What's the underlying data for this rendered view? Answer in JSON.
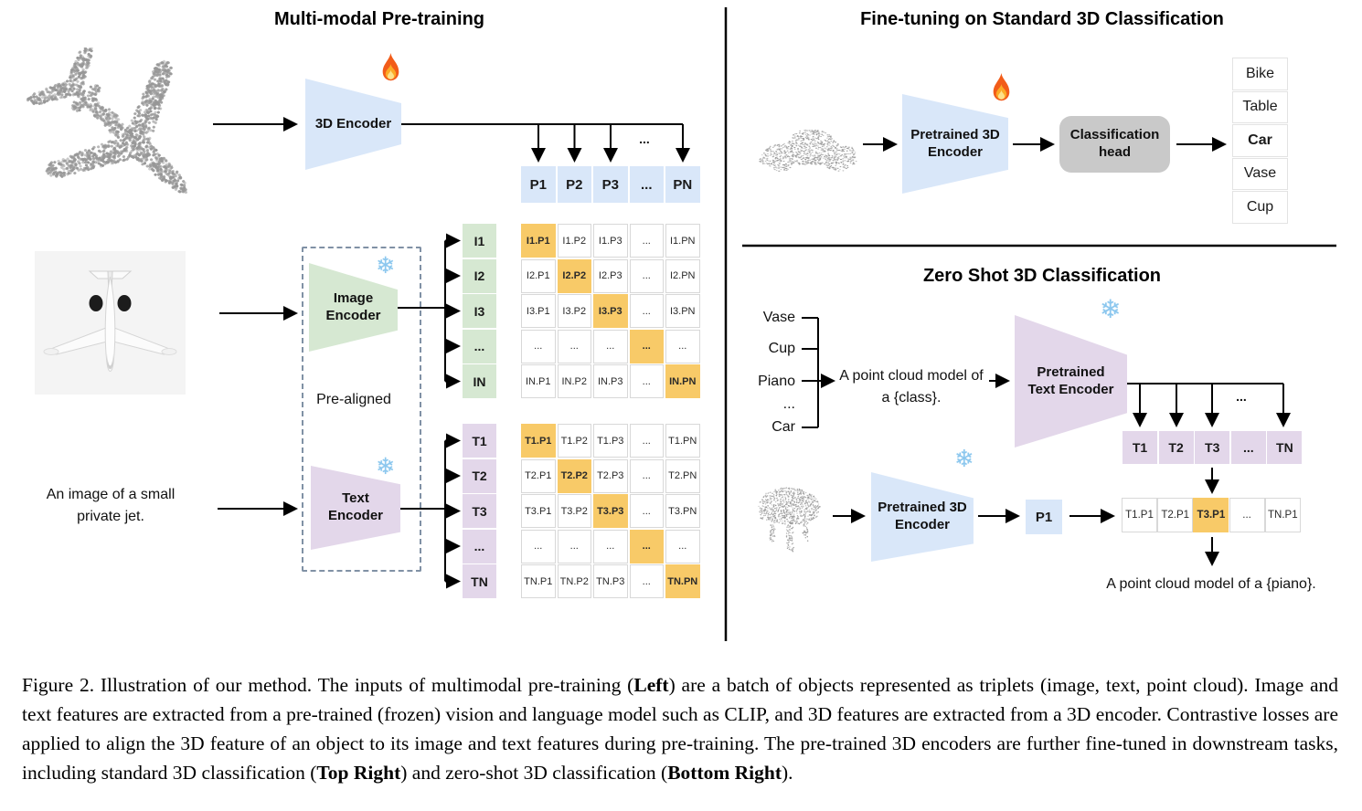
{
  "left": {
    "title": "Multi-modal Pre-training",
    "encoder3d_label": "3D Encoder",
    "image_encoder_label": "Image Encoder",
    "text_encoder_label": "Text Encoder",
    "pre_aligned": "Pre-aligned",
    "input_text": "An image of a small private jet.",
    "p_ellipsis": "...",
    "p_row": [
      "P1",
      "P2",
      "P3",
      "...",
      "PN"
    ],
    "i_labels": [
      "I1",
      "I2",
      "I3",
      "...",
      "IN"
    ],
    "t_labels": [
      "T1",
      "T2",
      "T3",
      "...",
      "TN"
    ],
    "i_matrix": [
      [
        "I1.P1",
        "I1.P2",
        "I1.P3",
        "...",
        "I1.PN"
      ],
      [
        "I2.P1",
        "I2.P2",
        "I2.P3",
        "...",
        "I2.PN"
      ],
      [
        "I3.P1",
        "I3.P2",
        "I3.P3",
        "...",
        "I3.PN"
      ],
      [
        "...",
        "...",
        "...",
        "...",
        "..."
      ],
      [
        "IN.P1",
        "IN.P2",
        "IN.P3",
        "...",
        "IN.PN"
      ]
    ],
    "t_matrix": [
      [
        "T1.P1",
        "T1.P2",
        "T1.P3",
        "...",
        "T1.PN"
      ],
      [
        "T2.P1",
        "T2.P2",
        "T2.P3",
        "...",
        "T2.PN"
      ],
      [
        "T3.P1",
        "T3.P2",
        "T3.P3",
        "...",
        "T3.PN"
      ],
      [
        "...",
        "...",
        "...",
        "...",
        "..."
      ],
      [
        "TN.P1",
        "TN.P2",
        "TN.P3",
        "...",
        "TN.PN"
      ]
    ]
  },
  "top_right": {
    "title": "Fine-tuning on Standard 3D Classification",
    "encoder_label": "Pretrained 3D Encoder",
    "head_label": "Classification head",
    "classes": [
      "Bike",
      "Table",
      "Car",
      "Vase",
      "Cup"
    ],
    "highlight_index": 2
  },
  "bottom_right": {
    "title": "Zero Shot 3D Classification",
    "class_list": [
      "Vase",
      "Cup",
      "Piano",
      "...",
      "Car"
    ],
    "prompt": "A point cloud model of a {class}.",
    "text_encoder_label": "Pretrained Text Encoder",
    "encoder_label": "Pretrained 3D Encoder",
    "t_row": [
      "T1",
      "T2",
      "T3",
      "...",
      "TN"
    ],
    "t_ellipsis": "...",
    "p_cell": "P1",
    "result_row": [
      "T1.P1",
      "T2.P1",
      "T3.P1",
      "...",
      "TN.P1"
    ],
    "result_highlight_index": 2,
    "output_text": "A point cloud model of a {piano}."
  },
  "colors": {
    "blue": "#d9e7f9",
    "green": "#d6e8d2",
    "purple": "#e3d7ea",
    "orange": "#f8ca68",
    "head_gray": "#c9c9c9"
  },
  "caption": {
    "segments": [
      {
        "t": "Figure 2. Illustration of our method.  The inputs of multimodal pre-training (",
        "b": false
      },
      {
        "t": "Left",
        "b": true
      },
      {
        "t": ") are a batch of objects represented as triplets (image, text, point cloud).  Image and text features are extracted from a pre-trained (frozen) vision and language model such as CLIP, and 3D features are extracted from a 3D encoder.  Contrastive losses are applied to align the 3D feature of an object to its image and text features during pre-training.  The pre-trained 3D encoders are further fine-tuned in downstream tasks, including standard 3D classification (",
        "b": false
      },
      {
        "t": "Top Right",
        "b": true
      },
      {
        "t": ") and zero-shot 3D classification (",
        "b": false
      },
      {
        "t": "Bottom Right",
        "b": true
      },
      {
        "t": ").",
        "b": false
      }
    ]
  }
}
